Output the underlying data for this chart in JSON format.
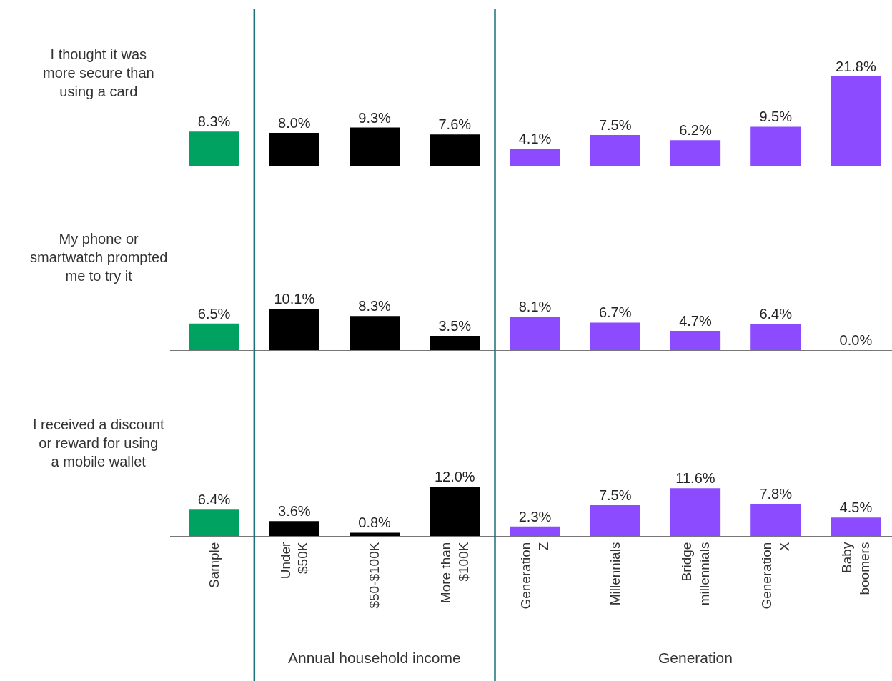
{
  "chart_data": [
    {
      "type": "bar",
      "title": "I thought it was\nmore secure than\nusing a card",
      "categories": [
        null,
        null,
        null,
        null,
        null,
        null,
        null,
        null,
        null
      ],
      "values": [
        8.3,
        8.0,
        9.3,
        7.6,
        4.1,
        7.5,
        6.2,
        9.5,
        21.8
      ],
      "value_labels": [
        "8.3%",
        "8.0%",
        "9.3%",
        "7.6%",
        "4.1%",
        "7.5%",
        "6.2%",
        "9.5%",
        "21.8%"
      ],
      "colors": [
        "#00a262",
        "#000000",
        "#000000",
        "#000000",
        "#8c4bff",
        "#8c4bff",
        "#8c4bff",
        "#8c4bff",
        "#8c4bff"
      ],
      "tick_labels": false
    },
    {
      "type": "bar",
      "title": "My phone or\nsmartwatch prompted\nme to try it",
      "categories": [
        null,
        null,
        null,
        null,
        null,
        null,
        null,
        null,
        null
      ],
      "values": [
        6.5,
        10.1,
        8.3,
        3.5,
        8.1,
        6.7,
        4.7,
        6.4,
        0.0
      ],
      "value_labels": [
        "6.5%",
        "10.1%",
        "8.3%",
        "3.5%",
        "8.1%",
        "6.7%",
        "4.7%",
        "6.4%",
        "0.0%"
      ],
      "colors": [
        "#00a262",
        "#000000",
        "#000000",
        "#000000",
        "#8c4bff",
        "#8c4bff",
        "#8c4bff",
        "#8c4bff",
        "#8c4bff"
      ],
      "tick_labels": false
    },
    {
      "type": "bar",
      "title": "I received a discount\nor reward for using\na mobile wallet",
      "categories": [
        "Sample",
        "Under\n$50K",
        "$50-$100K",
        "More than\n$100K",
        "Generation\nZ",
        "Millennials",
        "Bridge\nmillennials",
        "Generation\nX",
        "Baby\nboomers"
      ],
      "values": [
        6.4,
        3.6,
        0.8,
        12.0,
        2.3,
        7.5,
        11.6,
        7.8,
        4.5
      ],
      "value_labels": [
        "6.4%",
        "3.6%",
        "0.8%",
        "12.0%",
        "2.3%",
        "7.5%",
        "11.6%",
        "7.8%",
        "4.5%"
      ],
      "colors": [
        "#00a262",
        "#000000",
        "#000000",
        "#000000",
        "#8c4bff",
        "#8c4bff",
        "#8c4bff",
        "#8c4bff",
        "#8c4bff"
      ],
      "tick_labels": "x",
      "annotations": [
        "Annual household income",
        "Generation"
      ]
    }
  ]
}
